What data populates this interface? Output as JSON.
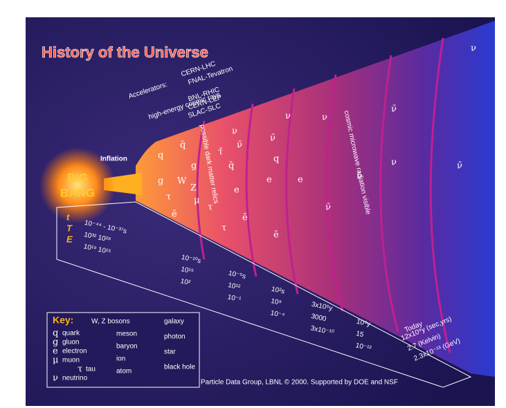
{
  "title": "History of the Universe",
  "accelerators": {
    "label": "Accelerators:",
    "items": [
      "CERN-LHC",
      "FNAL-Tevatron",
      "BNL-RHIC",
      "CERN-LEP",
      "SLAC-SLC"
    ],
    "cosmic_rays": "high-energy cosmic rays"
  },
  "inflation": "Inflation",
  "big_bang": [
    "BIG",
    "BANG"
  ],
  "band_labels": [
    "possible dark matter relics",
    "cosmic microwave radiation visible"
  ],
  "timeline": {
    "row_labels": [
      "t",
      "T",
      "E"
    ],
    "columns": [
      [
        "10⁻⁴⁴ - 10⁻³⁷s",
        "10³²   10²⁸",
        "10¹⁹   10¹⁵"
      ],
      [
        "10⁻¹⁰s",
        "10¹⁵",
        "10²"
      ],
      [
        "10⁻⁵s",
        "10¹²",
        "10⁻¹"
      ],
      [
        "10²s",
        "10⁹",
        "10⁻⁴"
      ],
      [
        "3x10⁵y",
        "3000",
        "3x10⁻¹⁰"
      ],
      [
        "10⁹y",
        "15",
        "10⁻¹²"
      ],
      [
        "12x10⁹y (sec,yrs)",
        "2.7 (Kelvin)",
        "2.3x10⁻¹³ (GeV)"
      ]
    ],
    "today": "Today"
  },
  "key": {
    "title": "Key:",
    "left": [
      [
        "q",
        "quark"
      ],
      [
        "g",
        "gluon"
      ],
      [
        "e",
        "electron"
      ],
      [
        "μ",
        "muon"
      ],
      [
        "τ",
        "tau"
      ],
      [
        "ν",
        "neutrino"
      ]
    ],
    "middle": [
      "W, Z bosons",
      "meson",
      "baryon",
      "ion",
      "atom"
    ],
    "right": [
      "galaxy",
      "photon",
      "star",
      "black hole"
    ]
  },
  "particles": [
    "q",
    "g",
    "τ",
    "W",
    "Z",
    "q̄",
    "g",
    "ē",
    "τ",
    "μ",
    "q̄",
    "τ̄",
    "e",
    "ν",
    "ē",
    "ν̄",
    "τ",
    "q",
    "e",
    "ν̄",
    "ē",
    "ν",
    "e",
    "ν̄",
    "ν",
    "ν̄",
    "ν",
    "ν̄",
    "ν",
    "ν̄"
  ],
  "footer": "Particle Data Group, LBNL © 2000.   Supported by DOE and NSF"
}
